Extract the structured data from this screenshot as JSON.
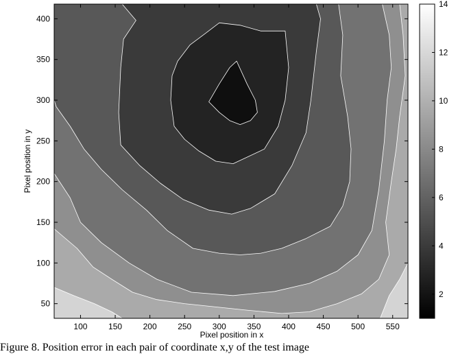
{
  "chart_data": {
    "type": "contour",
    "xlabel": "Pixel position in x",
    "ylabel": "Pixel position in y",
    "xlim": [
      62,
      572
    ],
    "ylim": [
      32,
      418
    ],
    "xticks": [
      100,
      150,
      200,
      250,
      300,
      350,
      400,
      450,
      500,
      550
    ],
    "yticks": [
      50,
      100,
      150,
      200,
      250,
      300,
      350,
      400
    ],
    "colorbar": {
      "range": [
        1,
        14
      ],
      "ticks": [
        2,
        4,
        6,
        8,
        10,
        12,
        14
      ],
      "colormap": "gray",
      "colors": {
        "low": "#000000",
        "high": "#ffffff"
      }
    },
    "contour_levels": [
      {
        "level": 1.2,
        "fill": "#0f0f0f",
        "points": [
          [
            315,
            340
          ],
          [
            325,
            348
          ],
          [
            340,
            320
          ],
          [
            352,
            300
          ],
          [
            355,
            285
          ],
          [
            345,
            275
          ],
          [
            330,
            270
          ],
          [
            315,
            275
          ],
          [
            300,
            285
          ],
          [
            285,
            298
          ],
          [
            300,
            320
          ]
        ]
      },
      {
        "level": 2.8,
        "fill": "#232323",
        "points": [
          [
            300,
            395
          ],
          [
            330,
            392
          ],
          [
            360,
            385
          ],
          [
            395,
            385
          ],
          [
            400,
            340
          ],
          [
            395,
            300
          ],
          [
            385,
            268
          ],
          [
            365,
            240
          ],
          [
            320,
            222
          ],
          [
            295,
            225
          ],
          [
            270,
            238
          ],
          [
            250,
            252
          ],
          [
            235,
            268
          ],
          [
            230,
            300
          ],
          [
            232,
            330
          ],
          [
            240,
            348
          ],
          [
            258,
            368
          ],
          [
            280,
            382
          ]
        ]
      },
      {
        "level": 4.4,
        "fill": "#3a3a3a",
        "points": [
          [
            160,
            418
          ],
          [
            440,
            418
          ],
          [
            446,
            400
          ],
          [
            440,
            360
          ],
          [
            432,
            300
          ],
          [
            425,
            260
          ],
          [
            405,
            220
          ],
          [
            380,
            185
          ],
          [
            345,
            167
          ],
          [
            318,
            160
          ],
          [
            285,
            165
          ],
          [
            248,
            178
          ],
          [
            215,
            198
          ],
          [
            185,
            220
          ],
          [
            158,
            245
          ],
          [
            155,
            285
          ],
          [
            158,
            340
          ],
          [
            162,
            375
          ],
          [
            180,
            398
          ]
        ]
      },
      {
        "level": 6.0,
        "fill": "#585858",
        "points": [
          [
            90,
            418
          ],
          [
            472,
            418
          ],
          [
            478,
            380
          ],
          [
            475,
            330
          ],
          [
            485,
            280
          ],
          [
            490,
            240
          ],
          [
            488,
            200
          ],
          [
            478,
            170
          ],
          [
            460,
            145
          ],
          [
            425,
            130
          ],
          [
            390,
            118
          ],
          [
            360,
            112
          ],
          [
            330,
            110
          ],
          [
            300,
            112
          ],
          [
            262,
            118
          ],
          [
            225,
            140
          ],
          [
            195,
            165
          ],
          [
            160,
            190
          ],
          [
            130,
            215
          ],
          [
            105,
            240
          ],
          [
            85,
            268
          ],
          [
            65,
            292
          ],
          [
            62,
            300
          ],
          [
            62,
            418
          ]
        ]
      },
      {
        "level": 7.6,
        "fill": "#727272",
        "points": [
          [
            62,
            418
          ],
          [
            535,
            418
          ],
          [
            545,
            380
          ],
          [
            548,
            340
          ],
          [
            542,
            300
          ],
          [
            538,
            250
          ],
          [
            530,
            190
          ],
          [
            520,
            140
          ],
          [
            500,
            110
          ],
          [
            470,
            90
          ],
          [
            430,
            75
          ],
          [
            380,
            65
          ],
          [
            320,
            60
          ],
          [
            260,
            64
          ],
          [
            210,
            80
          ],
          [
            170,
            100
          ],
          [
            130,
            125
          ],
          [
            100,
            150
          ],
          [
            85,
            180
          ],
          [
            62,
            210
          ]
        ]
      },
      {
        "level": 9.2,
        "fill": "#8f8f8f",
        "points": [
          [
            62,
            418
          ],
          [
            560,
            418
          ],
          [
            565,
            380
          ],
          [
            568,
            330
          ],
          [
            560,
            280
          ],
          [
            555,
            240
          ],
          [
            548,
            200
          ],
          [
            540,
            150
          ],
          [
            545,
            110
          ],
          [
            530,
            80
          ],
          [
            505,
            62
          ],
          [
            470,
            50
          ],
          [
            430,
            40
          ],
          [
            390,
            38
          ],
          [
            340,
            42
          ],
          [
            295,
            46
          ],
          [
            250,
            50
          ],
          [
            210,
            55
          ],
          [
            175,
            64
          ],
          [
            145,
            80
          ],
          [
            118,
            95
          ],
          [
            95,
            118
          ],
          [
            62,
            142
          ]
        ]
      },
      {
        "level": 10.8,
        "fill": "#aaaaaa",
        "points": [
          [
            62,
            418
          ],
          [
            572,
            418
          ],
          [
            572,
            100
          ],
          [
            560,
            80
          ],
          [
            545,
            60
          ],
          [
            532,
            32
          ],
          [
            160,
            32
          ],
          [
            145,
            40
          ],
          [
            120,
            50
          ],
          [
            90,
            60
          ],
          [
            62,
            70
          ]
        ]
      },
      {
        "level": 12.4,
        "fill": "#d4d4d4",
        "points": [
          [
            62,
            418
          ],
          [
            572,
            418
          ],
          [
            572,
            32
          ],
          [
            62,
            32
          ]
        ]
      }
    ]
  },
  "caption": "Figure 8.   Position error in each pair of coordinate x,y of the test image"
}
